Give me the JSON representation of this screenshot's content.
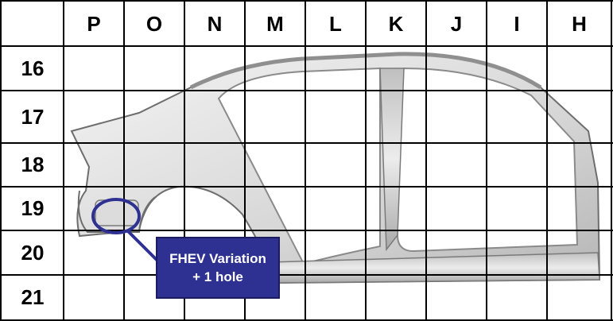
{
  "grid": {
    "columns": [
      "P",
      "O",
      "N",
      "M",
      "L",
      "K",
      "J",
      "I",
      "H"
    ],
    "rows": [
      "16",
      "17",
      "18",
      "19",
      "20",
      "21"
    ]
  },
  "callout": {
    "line1": "FHEV Variation",
    "line2": "+ 1 hole"
  },
  "colors": {
    "grid_line": "#000000",
    "callout_fill": "#2e3192",
    "callout_text": "#ffffff",
    "highlight_ring": "#2e3192"
  }
}
